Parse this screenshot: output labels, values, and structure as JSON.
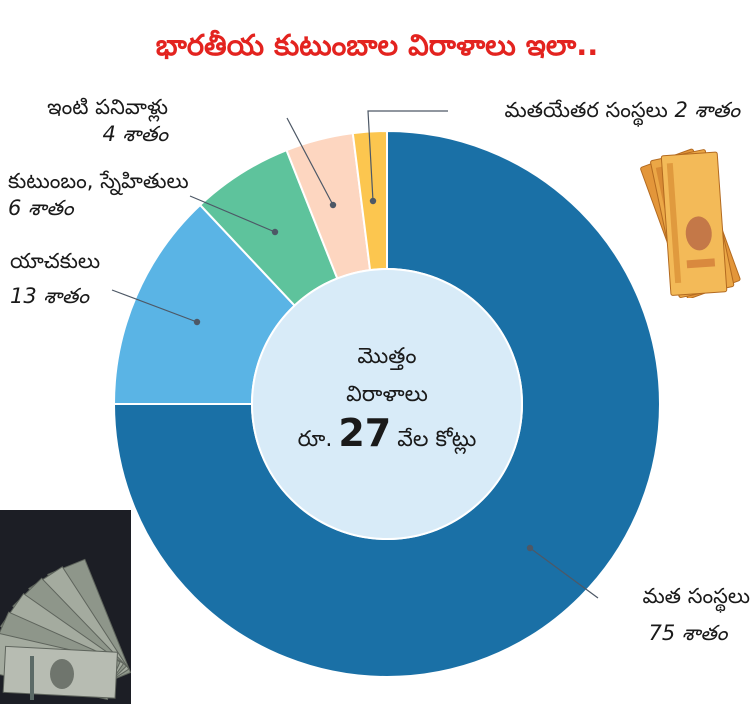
{
  "chart_data": {
    "type": "pie",
    "donut": true,
    "start_angle": "top",
    "direction": "clockwise",
    "title": "భారతీయ కుటుంబాల విరాళాలు ఇలా..",
    "title_color": "#e3231f",
    "categories": [
      "మత సంస్థలు",
      "యాచకులు",
      "కుటుంబం, స్నేహితులు",
      "ఇంటి పనివాళ్లు",
      "మతయేతర సంస్థలు"
    ],
    "values": [
      75,
      13,
      6,
      4,
      2
    ],
    "value_labels": [
      "75 శాతం",
      "13 శాతం",
      "6 శాతం",
      "4 శాతం",
      "2 శాతం"
    ],
    "colors": [
      "#1a70a6",
      "#5ab4e5",
      "#5ec39c",
      "#fdd6c0",
      "#fcc64f"
    ],
    "hole_color": "#d8ebf8",
    "center_label": {
      "line1": "మొత్తం",
      "line2": "విరాళాలు",
      "currency": "రూ.",
      "amount": "27",
      "unit": "వేల కోట్లు"
    }
  }
}
